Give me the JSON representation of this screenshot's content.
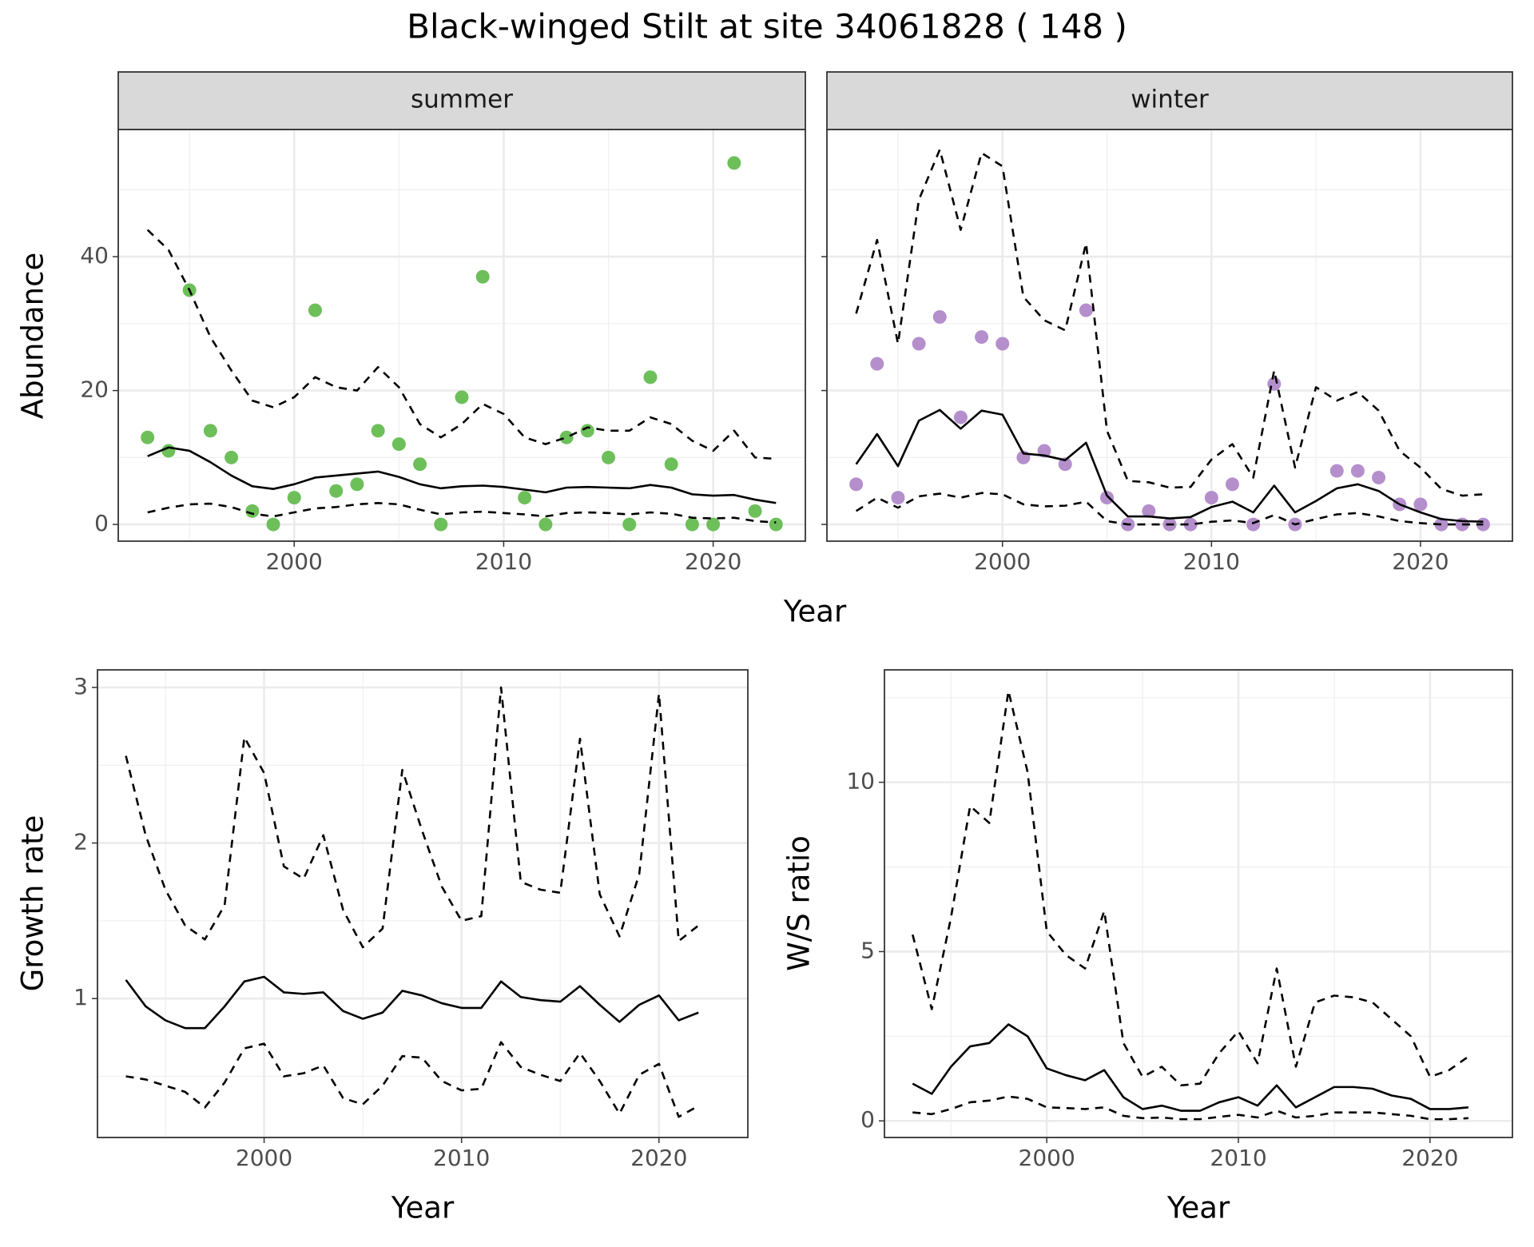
{
  "title": "Black-winged Stilt at site 34061828 ( 148 )",
  "chart_data": [
    {
      "type": "line",
      "strip": "summer",
      "xlabel": "Year",
      "ylabel": "Abundance",
      "x": [
        1993,
        1994,
        1995,
        1996,
        1997,
        1998,
        1999,
        2000,
        2001,
        2002,
        2003,
        2004,
        2005,
        2006,
        2007,
        2008,
        2009,
        2010,
        2011,
        2012,
        2013,
        2014,
        2015,
        2016,
        2017,
        2018,
        2019,
        2020,
        2021,
        2022,
        2023
      ],
      "series": [
        {
          "style": "points",
          "color": "#6dbf5a",
          "values": [
            13,
            11,
            35,
            14,
            10,
            2,
            0,
            4,
            32,
            5,
            6,
            14,
            12,
            9,
            0,
            19,
            37,
            null,
            4,
            0,
            13,
            14,
            10,
            0,
            22,
            9,
            0,
            0,
            54,
            2,
            0
          ]
        },
        {
          "style": "solid",
          "color": "#000000",
          "values": [
            10.2,
            11.5,
            11,
            9.3,
            7.3,
            5.7,
            5.3,
            6,
            7,
            7.3,
            7.6,
            7.9,
            7.1,
            6,
            5.4,
            5.7,
            5.8,
            5.6,
            5.2,
            4.8,
            5.5,
            5.6,
            5.5,
            5.4,
            5.9,
            5.5,
            4.5,
            4.3,
            4.4,
            3.7,
            3.2
          ]
        },
        {
          "style": "dashed",
          "color": "#000000",
          "values": [
            44,
            41,
            35,
            28,
            23,
            18.5,
            17.5,
            19,
            22,
            20.5,
            20,
            23.5,
            20.5,
            15,
            13,
            15,
            18,
            16.5,
            13,
            12,
            13,
            14.5,
            14,
            14,
            16,
            15,
            12.5,
            11,
            14,
            10,
            9.8
          ]
        },
        {
          "style": "dashed",
          "color": "#000000",
          "values": [
            1.8,
            2.5,
            3,
            3.1,
            2.6,
            1.6,
            1.2,
            1.8,
            2.4,
            2.6,
            3,
            3.2,
            3,
            2.2,
            1.5,
            1.8,
            1.9,
            1.7,
            1.5,
            1.2,
            1.7,
            1.8,
            1.7,
            1.5,
            1.8,
            1.6,
            1,
            0.9,
            1,
            0.5,
            0.3
          ]
        }
      ],
      "xlim": [
        1991.6,
        2024.4
      ],
      "xticks": [
        2000,
        2010,
        2020
      ],
      "ylim": [
        -2.5,
        59
      ],
      "yticks": [
        0,
        20,
        40
      ],
      "grid": true
    },
    {
      "type": "line",
      "strip": "winter",
      "x": [
        1993,
        1994,
        1995,
        1996,
        1997,
        1998,
        1999,
        2000,
        2001,
        2002,
        2003,
        2004,
        2005,
        2006,
        2007,
        2008,
        2009,
        2010,
        2011,
        2012,
        2013,
        2014,
        2015,
        2016,
        2017,
        2018,
        2019,
        2020,
        2021,
        2022,
        2023
      ],
      "series": [
        {
          "style": "points",
          "color": "#b48fcc",
          "values": [
            6,
            24,
            4,
            27,
            31,
            16,
            28,
            27,
            10,
            11,
            9,
            32,
            4,
            0,
            2,
            0,
            0,
            4,
            6,
            0,
            21,
            0,
            null,
            8,
            8,
            7,
            3,
            3,
            0,
            0,
            0
          ]
        },
        {
          "style": "solid",
          "color": "#000000",
          "values": [
            9,
            13.5,
            8.7,
            15.5,
            17.1,
            14.3,
            17,
            16.4,
            10.6,
            10.3,
            9.6,
            12.2,
            4.3,
            1.2,
            1.2,
            0.9,
            1.1,
            2.6,
            3.4,
            1.8,
            5.8,
            1.8,
            3.5,
            5.4,
            6,
            5,
            3,
            1.8,
            0.8,
            0.5,
            0.4
          ]
        },
        {
          "style": "dashed",
          "color": "#000000",
          "values": [
            31.5,
            42.5,
            27,
            48.5,
            56,
            44,
            55.5,
            53.5,
            34,
            30.5,
            29,
            42,
            14,
            6.5,
            6.3,
            5.5,
            5.6,
            9.7,
            12,
            7,
            23,
            8.5,
            20.5,
            18.5,
            19.8,
            17,
            11,
            8.5,
            5.3,
            4.3,
            4.5
          ]
        },
        {
          "style": "dashed",
          "color": "#000000",
          "values": [
            2,
            4,
            2.5,
            4.2,
            4.6,
            4,
            4.7,
            4.5,
            3,
            2.7,
            2.8,
            3.4,
            0.5,
            0,
            0,
            0,
            0,
            0.4,
            0.6,
            0.2,
            1.4,
            0,
            0.8,
            1.5,
            1.7,
            1.2,
            0.5,
            0.2,
            0,
            0,
            0
          ]
        }
      ],
      "xlim": [
        1991.6,
        2024.4
      ],
      "xticks": [
        2000,
        2010,
        2020
      ],
      "ylim": [
        -2.5,
        59
      ],
      "yticks": [
        0,
        20,
        40
      ],
      "grid": true
    },
    {
      "type": "line",
      "xlabel": "Year",
      "ylabel": "Growth rate",
      "x": [
        1993,
        1994,
        1995,
        1996,
        1997,
        1998,
        1999,
        2000,
        2001,
        2002,
        2003,
        2004,
        2005,
        2006,
        2007,
        2008,
        2009,
        2010,
        2011,
        2012,
        2013,
        2014,
        2015,
        2016,
        2017,
        2018,
        2019,
        2020,
        2021,
        2022
      ],
      "series": [
        {
          "style": "solid",
          "color": "#000000",
          "values": [
            1.12,
            0.95,
            0.86,
            0.81,
            0.81,
            0.95,
            1.11,
            1.14,
            1.04,
            1.03,
            1.04,
            0.92,
            0.87,
            0.91,
            1.05,
            1.02,
            0.97,
            0.94,
            0.94,
            1.11,
            1.01,
            0.99,
            0.98,
            1.08,
            0.96,
            0.85,
            0.96,
            1.02,
            0.86,
            0.91
          ]
        },
        {
          "style": "dashed",
          "color": "#000000",
          "values": [
            2.56,
            2.05,
            1.7,
            1.47,
            1.38,
            1.6,
            2.68,
            2.45,
            1.85,
            1.77,
            2.05,
            1.57,
            1.33,
            1.45,
            2.47,
            2.08,
            1.72,
            1.5,
            1.53,
            3,
            1.75,
            1.7,
            1.68,
            2.67,
            1.67,
            1.4,
            1.8,
            2.96,
            1.37,
            1.47
          ]
        },
        {
          "style": "dashed",
          "color": "#000000",
          "values": [
            0.5,
            0.48,
            0.44,
            0.4,
            0.3,
            0.46,
            0.68,
            0.71,
            0.5,
            0.52,
            0.57,
            0.36,
            0.32,
            0.44,
            0.63,
            0.62,
            0.47,
            0.41,
            0.42,
            0.72,
            0.56,
            0.51,
            0.47,
            0.65,
            0.47,
            0.26,
            0.51,
            0.58,
            0.24,
            0.31
          ]
        }
      ],
      "xlim": [
        1991.56,
        2024.5
      ],
      "xticks": [
        2000,
        2010,
        2020
      ],
      "ylim": [
        0.107,
        3.113
      ],
      "yticks": [
        1,
        2,
        3
      ],
      "grid": true
    },
    {
      "type": "line",
      "xlabel": "Year",
      "ylabel": "W/S ratio",
      "x": [
        1993,
        1994,
        1995,
        1996,
        1997,
        1998,
        1999,
        2000,
        2001,
        2002,
        2003,
        2004,
        2005,
        2006,
        2007,
        2008,
        2009,
        2010,
        2011,
        2012,
        2013,
        2014,
        2015,
        2016,
        2017,
        2018,
        2019,
        2020,
        2021,
        2022
      ],
      "series": [
        {
          "style": "solid",
          "color": "#000000",
          "values": [
            1.1,
            0.8,
            1.6,
            2.2,
            2.3,
            2.85,
            2.5,
            1.55,
            1.35,
            1.2,
            1.5,
            0.7,
            0.35,
            0.45,
            0.3,
            0.3,
            0.55,
            0.7,
            0.45,
            1.05,
            0.4,
            0.7,
            1,
            1,
            0.95,
            0.75,
            0.65,
            0.35,
            0.35,
            0.4
          ]
        },
        {
          "style": "dashed",
          "color": "#000000",
          "values": [
            5.5,
            3.3,
            6,
            9.3,
            8.8,
            12.7,
            10.3,
            5.6,
            4.9,
            4.5,
            6.2,
            2.3,
            1.3,
            1.6,
            1.05,
            1.1,
            2,
            2.65,
            1.7,
            4.5,
            1.6,
            3.5,
            3.7,
            3.65,
            3.5,
            3,
            2.5,
            1.3,
            1.5,
            1.9
          ]
        },
        {
          "style": "dashed",
          "color": "#000000",
          "values": [
            0.25,
            0.2,
            0.35,
            0.55,
            0.6,
            0.72,
            0.65,
            0.4,
            0.38,
            0.35,
            0.4,
            0.15,
            0.08,
            0.1,
            0.05,
            0.05,
            0.12,
            0.18,
            0.1,
            0.3,
            0.1,
            0.15,
            0.25,
            0.25,
            0.25,
            0.2,
            0.15,
            0.05,
            0.05,
            0.08
          ]
        }
      ],
      "xlim": [
        1991.53,
        2024.3
      ],
      "xticks": [
        2000,
        2010,
        2020
      ],
      "ylim": [
        -0.49,
        13.32
      ],
      "yticks": [
        0,
        5,
        10
      ],
      "grid": true
    }
  ]
}
